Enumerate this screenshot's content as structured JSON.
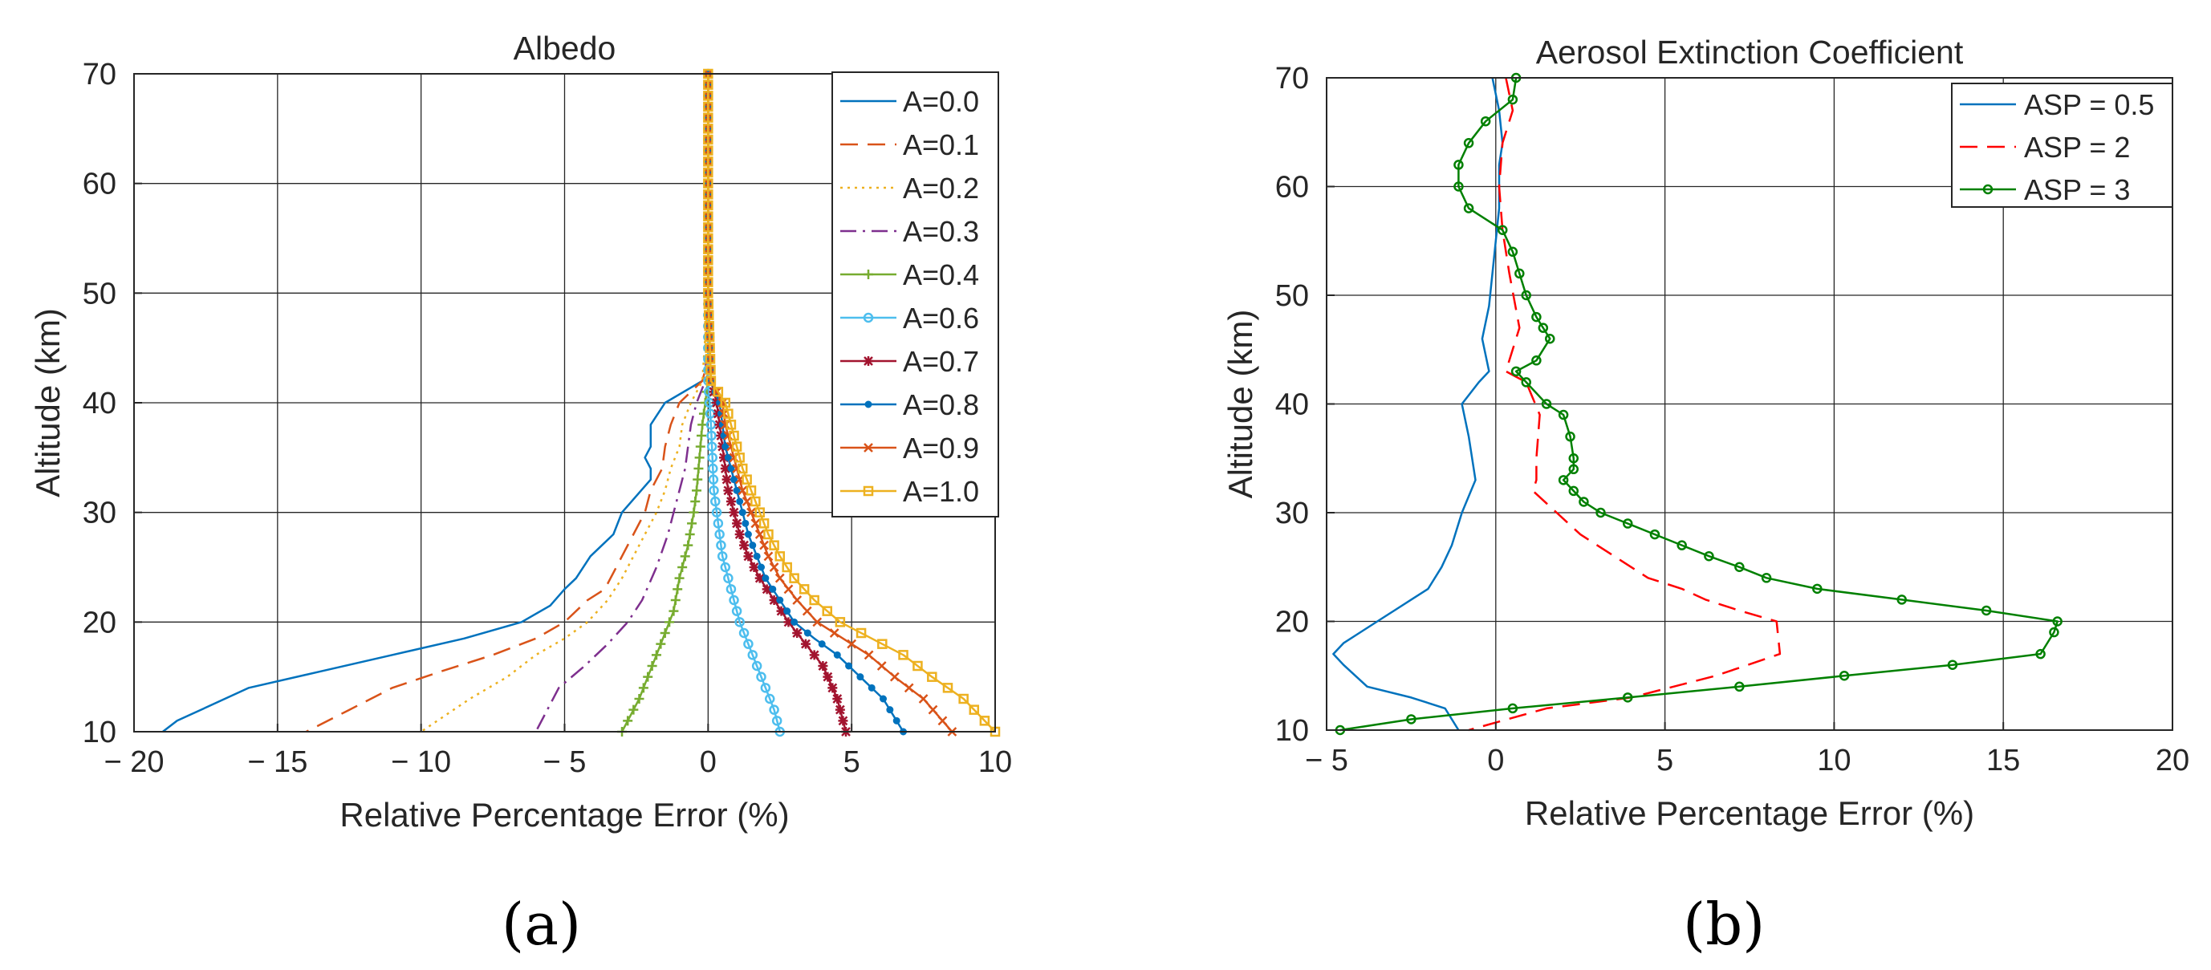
{
  "panels": [
    {
      "label": "(a)"
    },
    {
      "label": "(b)"
    }
  ],
  "chart_data": [
    {
      "type": "line",
      "title": "Albedo",
      "xlabel": "Relative Percentage Error (%)",
      "ylabel": "Altitude (km)",
      "xlim": [
        -20,
        10
      ],
      "ylim": [
        10,
        70
      ],
      "xticks": [
        -20,
        -15,
        -10,
        -5,
        0,
        5,
        10
      ],
      "xtick_labels": [
        "− 20",
        "− 15",
        "− 10",
        "− 5",
        "0",
        "5",
        "10"
      ],
      "yticks": [
        10,
        20,
        30,
        40,
        50,
        60,
        70
      ],
      "ytick_labels": [
        "10",
        "20",
        "30",
        "40",
        "50",
        "60",
        "70"
      ],
      "grid": true,
      "legend_position": "top-right",
      "series": [
        {
          "name": "A=0.0",
          "color": "#0072BD",
          "dash": "solid",
          "marker": "none",
          "x": [
            0,
            0,
            0,
            0,
            0,
            -0.2,
            -1.5,
            -2,
            -2,
            -2.2,
            -2,
            -2,
            -3,
            -3.3,
            -4.1,
            -4.6,
            -5,
            -5.5,
            -6.5,
            -8.5,
            -11,
            -13.5,
            -16,
            -18.5,
            -19
          ],
          "y": [
            70,
            60,
            50,
            45,
            42.5,
            42,
            40,
            38,
            36,
            35,
            34,
            33,
            30,
            28,
            26,
            24,
            23,
            21.5,
            20,
            18.5,
            17,
            15.5,
            14,
            11,
            10
          ]
        },
        {
          "name": "A=0.1",
          "color": "#D95319",
          "dash": "dashed",
          "marker": "none",
          "x": [
            0,
            0,
            0,
            0,
            -0.2,
            -1,
            -1.3,
            -1.5,
            -1.6,
            -2,
            -2.2,
            -2.6,
            -3,
            -3.2,
            -3.6,
            -4.2,
            -5,
            -6,
            -7.5,
            -9.3,
            -11,
            -12.5,
            -14
          ],
          "y": [
            70,
            60,
            50,
            44,
            42,
            40,
            38,
            36,
            34,
            32,
            30,
            28,
            26,
            25,
            23,
            22,
            20,
            18.5,
            17,
            15.5,
            14,
            12,
            10
          ]
        },
        {
          "name": "A=0.2",
          "color": "#EDB120",
          "dash": "dotted",
          "marker": "none",
          "x": [
            0,
            0,
            0,
            -0.2,
            -0.6,
            -0.9,
            -1,
            -1.3,
            -1.5,
            -1.8,
            -2.2,
            -2.6,
            -3,
            -3.5,
            -4.2,
            -5,
            -6,
            -7,
            -8.3,
            -10
          ],
          "y": [
            70,
            60,
            50,
            42,
            40,
            38,
            36,
            34,
            32,
            30,
            28,
            26,
            24,
            22,
            20,
            18.5,
            17,
            15,
            13,
            10
          ]
        },
        {
          "name": "A=0.3",
          "color": "#7E2F8E",
          "dash": "dashdot",
          "marker": "none",
          "x": [
            0,
            0,
            0,
            -0.1,
            -0.4,
            -0.6,
            -0.7,
            -0.8,
            -1,
            -1.2,
            -1.4,
            -1.8,
            -2.3,
            -2.8,
            -3.5,
            -4.3,
            -5.2,
            -6
          ],
          "y": [
            70,
            60,
            50,
            42,
            40,
            38,
            36,
            34,
            32,
            30,
            28,
            25,
            22,
            20,
            18,
            16,
            14,
            10
          ]
        },
        {
          "name": "A=0.4",
          "color": "#77AC30",
          "dash": "solid",
          "marker": "plus",
          "x": [
            0,
            0,
            0,
            0,
            -0.1,
            -0.2,
            -0.3,
            -0.4,
            -0.5,
            -0.7,
            -1,
            -1.2,
            -1.5,
            -1.8,
            -2.1,
            -2.4,
            -2.7,
            -3
          ],
          "y": [
            70,
            60,
            50,
            42,
            40,
            38,
            35,
            32,
            30,
            27,
            24,
            21,
            19,
            17,
            15,
            13,
            11.5,
            10
          ]
        },
        {
          "name": "A=0.6",
          "color": "#4DBEEE",
          "dash": "solid",
          "marker": "circle",
          "x": [
            0,
            0,
            0,
            0,
            0.05,
            0.1,
            0.15,
            0.2,
            0.3,
            0.4,
            0.5,
            0.7,
            0.9,
            1.1,
            1.4,
            1.7,
            2,
            2.3,
            2.5
          ],
          "y": [
            70,
            60,
            50,
            42,
            40,
            38,
            35,
            32,
            30,
            28,
            26,
            24,
            22,
            20,
            18,
            16,
            14,
            12,
            10
          ]
        },
        {
          "name": "A=0.7",
          "color": "#A2142F",
          "dash": "solid",
          "marker": "star",
          "x": [
            0,
            0,
            0,
            0.1,
            0.3,
            0.4,
            0.5,
            0.6,
            0.7,
            0.9,
            1.1,
            1.4,
            1.8,
            2.3,
            2.8,
            3.4,
            4,
            4.5,
            4.8
          ],
          "y": [
            70,
            60,
            50,
            42,
            40,
            38,
            36,
            34,
            32,
            30,
            28,
            26,
            24,
            22,
            20,
            18,
            16,
            13,
            10
          ]
        },
        {
          "name": "A=0.8",
          "color": "#0072BD",
          "dash": "solid",
          "marker": "dot",
          "x": [
            0,
            0,
            0,
            0.1,
            0.4,
            0.5,
            0.6,
            0.8,
            1,
            1.2,
            1.4,
            1.7,
            2,
            2.5,
            3,
            3.7,
            4.5,
            5.3,
            6.1,
            6.8
          ],
          "y": [
            70,
            60,
            50,
            42,
            40,
            38,
            36,
            34,
            32,
            30,
            28,
            26,
            24,
            22,
            20,
            18.5,
            17,
            15,
            13,
            10
          ]
        },
        {
          "name": "A=0.9",
          "color": "#D95319",
          "dash": "solid",
          "marker": "x",
          "x": [
            0,
            0,
            0,
            0.1,
            0.5,
            0.6,
            0.8,
            1,
            1.2,
            1.5,
            1.8,
            2.1,
            2.5,
            3.1,
            3.8,
            4.7,
            5.6,
            6.5,
            7.5,
            8.5
          ],
          "y": [
            70,
            60,
            50,
            42,
            40,
            38,
            36,
            34,
            32,
            30,
            28,
            26,
            24,
            22,
            20,
            18.5,
            17,
            15,
            13,
            10
          ]
        },
        {
          "name": "A=1.0",
          "color": "#EDB120",
          "dash": "solid",
          "marker": "square",
          "x": [
            0,
            0,
            0,
            0.1,
            0.6,
            0.8,
            1,
            1.2,
            1.5,
            1.8,
            2.1,
            2.5,
            3,
            3.7,
            4.6,
            5.7,
            6.8,
            7.8,
            8.9,
            10
          ],
          "y": [
            70,
            60,
            50,
            42,
            40,
            38,
            36,
            34,
            32,
            30,
            28,
            26,
            24,
            22,
            20,
            18.5,
            17,
            15,
            13,
            10
          ]
        }
      ]
    },
    {
      "type": "line",
      "title": "Aerosol Extinction Coefficient",
      "xlabel": "Relative Percentage Error (%)",
      "ylabel": "Altitude (km)",
      "xlim": [
        -5,
        20
      ],
      "ylim": [
        10,
        70
      ],
      "xticks": [
        -5,
        0,
        5,
        10,
        15,
        20
      ],
      "xtick_labels": [
        "− 5",
        "0",
        "5",
        "10",
        "15",
        "20"
      ],
      "yticks": [
        10,
        20,
        30,
        40,
        50,
        60,
        70
      ],
      "ytick_labels": [
        "10",
        "20",
        "30",
        "40",
        "50",
        "60",
        "70"
      ],
      "grid": true,
      "legend_position": "top-right",
      "series": [
        {
          "name": "ASP = 0.5",
          "color": "#0072BD",
          "dash": "solid",
          "marker": "none",
          "x": [
            -0.1,
            0.1,
            0.2,
            0.1,
            0.1,
            0,
            -0.1,
            -0.2,
            -0.4,
            -0.2,
            -0.5,
            -1,
            -0.8,
            -0.6,
            -1,
            -1.3,
            -1.6,
            -2,
            -2.5,
            -3,
            -3.5,
            -4,
            -4.5,
            -4.8,
            -4.5,
            -3.8,
            -2.5,
            -1.5,
            -1.1
          ],
          "y": [
            70,
            67,
            64,
            62,
            58,
            55,
            52,
            49,
            46,
            43,
            42,
            40,
            37,
            33,
            30,
            27,
            25,
            23,
            22,
            21,
            20,
            19,
            18,
            17,
            16,
            14,
            13,
            12,
            10
          ]
        },
        {
          "name": "ASP = 2",
          "color": "#FF0000",
          "dash": "dashed",
          "marker": "none",
          "x": [
            0.3,
            0.5,
            0.2,
            0.1,
            0.2,
            0.4,
            0.7,
            0.3,
            0.9,
            1.3,
            1.2,
            1.2,
            1.1,
            1.8,
            2.5,
            3.5,
            4.5,
            5.5,
            6.2,
            7.2,
            8.3,
            8.4,
            6.5,
            4,
            1.5,
            -0.8
          ],
          "y": [
            70,
            67,
            64,
            60,
            56,
            52,
            47,
            43,
            42,
            39,
            35,
            33,
            32,
            30,
            28,
            26,
            24,
            23,
            22,
            21,
            20,
            17,
            15,
            13,
            12,
            10
          ]
        },
        {
          "name": "ASP = 3",
          "color": "#008000",
          "dash": "solid",
          "marker": "circle",
          "x": [
            0.6,
            0.5,
            -0.3,
            -0.8,
            -1.1,
            -1.1,
            -0.8,
            0.2,
            0.5,
            0.7,
            0.9,
            1.2,
            1.4,
            1.6,
            1.2,
            0.6,
            0.9,
            1.5,
            2,
            2.2,
            2.3,
            2.3,
            2,
            2.3,
            2.6,
            3.1,
            3.9,
            4.7,
            5.5,
            6.3,
            7.2,
            8,
            9.5,
            12,
            14.5,
            16.6,
            16.5,
            16.1,
            13.5,
            10.3,
            7.2,
            3.9,
            0.5,
            -2.5,
            -4.6
          ],
          "y": [
            70,
            68,
            66,
            64,
            62,
            60,
            58,
            56,
            54,
            52,
            50,
            48,
            47,
            46,
            44,
            43,
            42,
            40,
            39,
            37,
            35,
            34,
            33,
            32,
            31,
            30,
            29,
            28,
            27,
            26,
            25,
            24,
            23,
            22,
            21,
            20,
            19,
            17,
            16,
            15,
            14,
            13,
            12,
            11,
            10
          ]
        }
      ]
    }
  ]
}
